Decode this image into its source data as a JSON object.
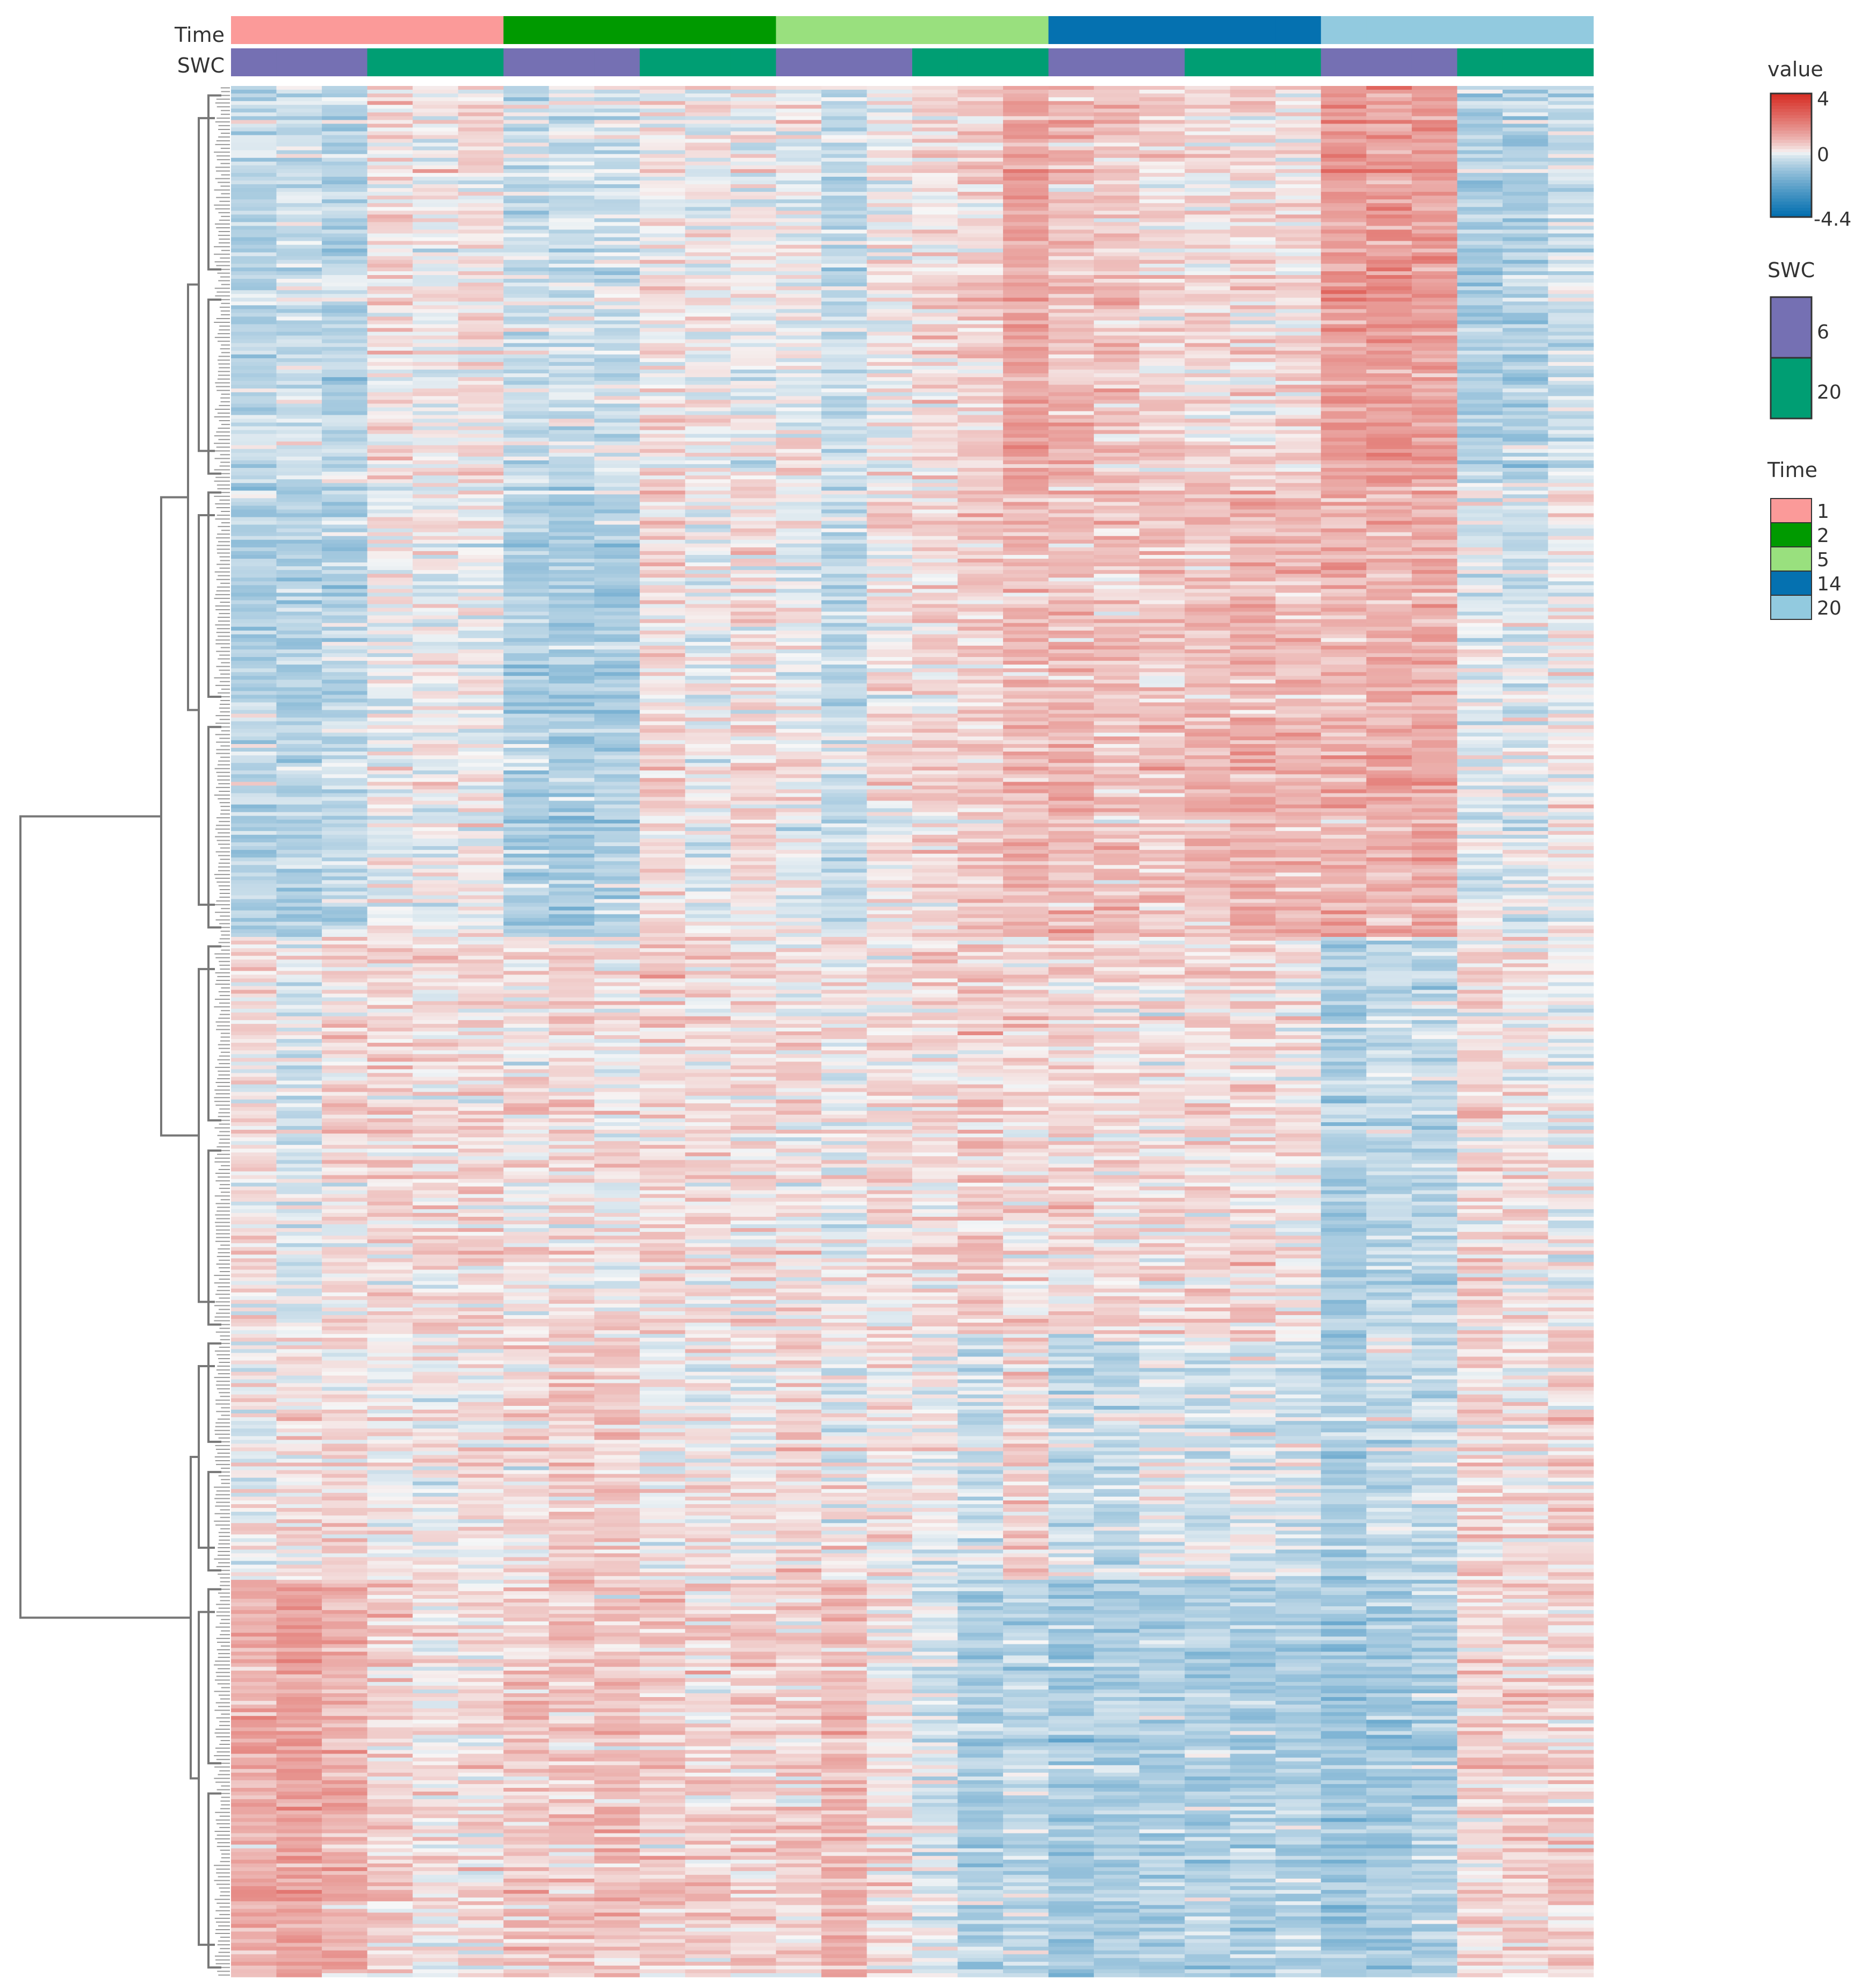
{
  "chart_data": {
    "type": "heatmap",
    "title": "",
    "xlabel": "",
    "ylabel": "",
    "annotation_rows": [
      {
        "name": "Time",
        "label": "Time"
      },
      {
        "name": "SWC",
        "label": "SWC"
      }
    ],
    "columns": [
      {
        "Time": "1",
        "SWC": "6"
      },
      {
        "Time": "1",
        "SWC": "6"
      },
      {
        "Time": "1",
        "SWC": "6"
      },
      {
        "Time": "1",
        "SWC": "20"
      },
      {
        "Time": "1",
        "SWC": "20"
      },
      {
        "Time": "1",
        "SWC": "20"
      },
      {
        "Time": "2",
        "SWC": "6"
      },
      {
        "Time": "2",
        "SWC": "6"
      },
      {
        "Time": "2",
        "SWC": "6"
      },
      {
        "Time": "2",
        "SWC": "20"
      },
      {
        "Time": "2",
        "SWC": "20"
      },
      {
        "Time": "2",
        "SWC": "20"
      },
      {
        "Time": "5",
        "SWC": "6"
      },
      {
        "Time": "5",
        "SWC": "6"
      },
      {
        "Time": "5",
        "SWC": "6"
      },
      {
        "Time": "5",
        "SWC": "20"
      },
      {
        "Time": "5",
        "SWC": "20"
      },
      {
        "Time": "5",
        "SWC": "20"
      },
      {
        "Time": "14",
        "SWC": "6"
      },
      {
        "Time": "14",
        "SWC": "6"
      },
      {
        "Time": "14",
        "SWC": "6"
      },
      {
        "Time": "14",
        "SWC": "20"
      },
      {
        "Time": "14",
        "SWC": "20"
      },
      {
        "Time": "14",
        "SWC": "20"
      },
      {
        "Time": "20",
        "SWC": "6"
      },
      {
        "Time": "20",
        "SWC": "6"
      },
      {
        "Time": "20",
        "SWC": "6"
      },
      {
        "Time": "20",
        "SWC": "20"
      },
      {
        "Time": "20",
        "SWC": "20"
      },
      {
        "Time": "20",
        "SWC": "20"
      }
    ],
    "row_count": 500,
    "value_range": [
      -4.4,
      4
    ],
    "row_clusters": [
      {
        "rows": [
          0,
          105
        ],
        "profile": [
          -0.7,
          -0.5,
          -0.7,
          0.3,
          0.1,
          0.2,
          -0.5,
          -0.4,
          -0.5,
          0.2,
          0.1,
          0.0,
          0.0,
          -0.6,
          0.0,
          0.3,
          0.5,
          1.3,
          0.8,
          0.6,
          0.4,
          0.3,
          0.4,
          0.3,
          1.4,
          1.5,
          1.4,
          -0.9,
          -0.9,
          -0.4
        ]
      },
      {
        "rows": [
          105,
          225
        ],
        "profile": [
          -0.8,
          -0.8,
          -0.7,
          0.0,
          0.0,
          0.0,
          -0.9,
          -1.0,
          -0.9,
          0.4,
          -0.1,
          0.3,
          0.0,
          -0.6,
          0.2,
          0.4,
          0.6,
          0.9,
          0.8,
          0.7,
          0.6,
          0.8,
          1.0,
          0.9,
          1.0,
          1.0,
          1.1,
          -0.2,
          -0.3,
          0.1
        ]
      },
      {
        "rows": [
          225,
          330
        ],
        "profile": [
          0.2,
          -0.3,
          0.3,
          0.4,
          0.3,
          0.4,
          0.2,
          0.3,
          0.1,
          0.4,
          0.3,
          0.3,
          0.2,
          0.0,
          0.2,
          0.3,
          0.6,
          0.3,
          0.4,
          0.3,
          0.3,
          0.3,
          0.4,
          0.2,
          -0.9,
          -0.6,
          -0.7,
          0.4,
          0.2,
          0.0
        ]
      },
      {
        "rows": [
          330,
          395
        ],
        "profile": [
          0.0,
          0.3,
          0.3,
          0.1,
          0.1,
          0.2,
          0.3,
          0.5,
          0.6,
          0.1,
          0.2,
          0.1,
          0.3,
          0.0,
          0.1,
          0.0,
          -0.5,
          0.5,
          -0.5,
          -0.6,
          -0.2,
          -0.3,
          -0.2,
          -0.3,
          -1.0,
          -0.6,
          -0.5,
          0.3,
          0.3,
          0.5
        ]
      },
      {
        "rows": [
          395,
          500
        ],
        "profile": [
          1.1,
          1.3,
          1.0,
          0.5,
          0.2,
          0.3,
          0.6,
          0.6,
          0.7,
          0.6,
          0.5,
          0.5,
          0.5,
          0.9,
          0.3,
          -0.3,
          -0.9,
          -0.6,
          -1.0,
          -0.9,
          -0.9,
          -0.8,
          -0.9,
          -0.8,
          -1.2,
          -1.1,
          -0.9,
          0.4,
          0.5,
          0.5
        ]
      }
    ],
    "dendrogram": {
      "side": "left",
      "root_split_rows": [
        0,
        330,
        500
      ]
    },
    "legends": [
      {
        "title": "value",
        "type": "colorbar",
        "ticks": [
          "4",
          "0",
          "-4.4"
        ],
        "low_color": "#0570b0",
        "mid_color": "#f7f7f7",
        "high_color": "#d73027"
      },
      {
        "title": "SWC",
        "type": "categorical",
        "levels": [
          {
            "label": "6",
            "color": "#7570b3"
          },
          {
            "label": "20",
            "color": "#009e73"
          }
        ]
      },
      {
        "title": "Time",
        "type": "categorical",
        "levels": [
          {
            "label": "1",
            "color": "#fb9a99"
          },
          {
            "label": "2",
            "color": "#009a00"
          },
          {
            "label": "5",
            "color": "#99e07e"
          },
          {
            "label": "14",
            "color": "#0571b0"
          },
          {
            "label": "20",
            "color": "#92cadf"
          }
        ]
      }
    ],
    "legend_placement": "right"
  }
}
